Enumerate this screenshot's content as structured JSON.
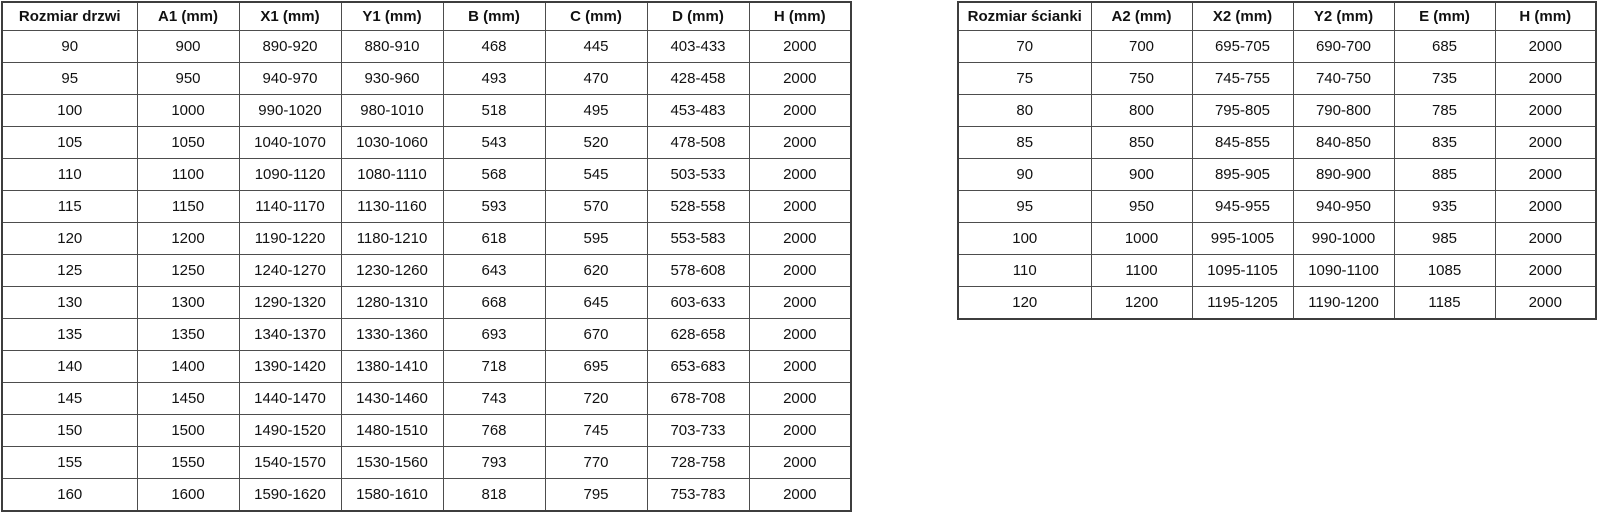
{
  "door_table": {
    "headers": [
      "Rozmiar drzwi",
      "A1 (mm)",
      "X1 (mm)",
      "Y1 (mm)",
      "B (mm)",
      "C (mm)",
      "D (mm)",
      "H (mm)"
    ],
    "rows": [
      [
        "90",
        "900",
        "890-920",
        "880-910",
        "468",
        "445",
        "403-433",
        "2000"
      ],
      [
        "95",
        "950",
        "940-970",
        "930-960",
        "493",
        "470",
        "428-458",
        "2000"
      ],
      [
        "100",
        "1000",
        "990-1020",
        "980-1010",
        "518",
        "495",
        "453-483",
        "2000"
      ],
      [
        "105",
        "1050",
        "1040-1070",
        "1030-1060",
        "543",
        "520",
        "478-508",
        "2000"
      ],
      [
        "110",
        "1100",
        "1090-1120",
        "1080-1110",
        "568",
        "545",
        "503-533",
        "2000"
      ],
      [
        "115",
        "1150",
        "1140-1170",
        "1130-1160",
        "593",
        "570",
        "528-558",
        "2000"
      ],
      [
        "120",
        "1200",
        "1190-1220",
        "1180-1210",
        "618",
        "595",
        "553-583",
        "2000"
      ],
      [
        "125",
        "1250",
        "1240-1270",
        "1230-1260",
        "643",
        "620",
        "578-608",
        "2000"
      ],
      [
        "130",
        "1300",
        "1290-1320",
        "1280-1310",
        "668",
        "645",
        "603-633",
        "2000"
      ],
      [
        "135",
        "1350",
        "1340-1370",
        "1330-1360",
        "693",
        "670",
        "628-658",
        "2000"
      ],
      [
        "140",
        "1400",
        "1390-1420",
        "1380-1410",
        "718",
        "695",
        "653-683",
        "2000"
      ],
      [
        "145",
        "1450",
        "1440-1470",
        "1430-1460",
        "743",
        "720",
        "678-708",
        "2000"
      ],
      [
        "150",
        "1500",
        "1490-1520",
        "1480-1510",
        "768",
        "745",
        "703-733",
        "2000"
      ],
      [
        "155",
        "1550",
        "1540-1570",
        "1530-1560",
        "793",
        "770",
        "728-758",
        "2000"
      ],
      [
        "160",
        "1600",
        "1590-1620",
        "1580-1610",
        "818",
        "795",
        "753-783",
        "2000"
      ]
    ]
  },
  "wall_table": {
    "headers": [
      "Rozmiar ścianki",
      "A2 (mm)",
      "X2 (mm)",
      "Y2 (mm)",
      "E (mm)",
      "H (mm)"
    ],
    "rows": [
      [
        "70",
        "700",
        "695-705",
        "690-700",
        "685",
        "2000"
      ],
      [
        "75",
        "750",
        "745-755",
        "740-750",
        "735",
        "2000"
      ],
      [
        "80",
        "800",
        "795-805",
        "790-800",
        "785",
        "2000"
      ],
      [
        "85",
        "850",
        "845-855",
        "840-850",
        "835",
        "2000"
      ],
      [
        "90",
        "900",
        "895-905",
        "890-900",
        "885",
        "2000"
      ],
      [
        "95",
        "950",
        "945-955",
        "940-950",
        "935",
        "2000"
      ],
      [
        "100",
        "1000",
        "995-1005",
        "990-1000",
        "985",
        "2000"
      ],
      [
        "110",
        "1100",
        "1095-1105",
        "1090-1100",
        "1085",
        "2000"
      ],
      [
        "120",
        "1200",
        "1195-1205",
        "1190-1200",
        "1185",
        "2000"
      ]
    ]
  },
  "colors": {
    "table_border": "#4d4d4d",
    "table_outer_border": "#3d3d3d",
    "text": "#111111",
    "background": "#ffffff"
  }
}
